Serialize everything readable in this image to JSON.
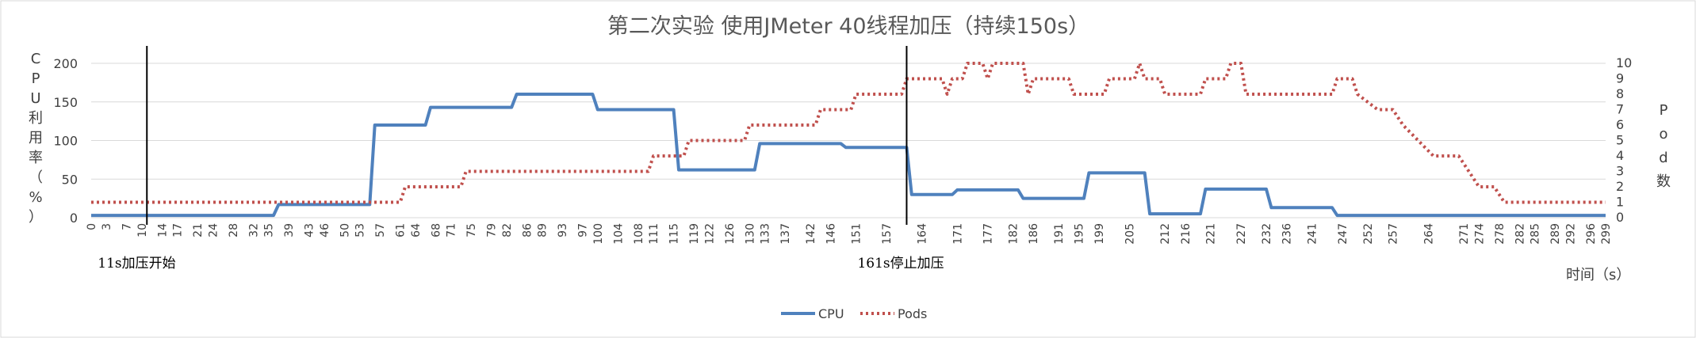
{
  "chart_data": {
    "type": "line",
    "title": "第二次实验 使用JMeter 40线程加压（持续150s）",
    "xlabel": "时间（s）",
    "ylabel_left_chars": [
      "C",
      "P",
      "U",
      "利",
      "用",
      "率",
      "（",
      "%",
      "）"
    ],
    "ylabel_right_chars": [
      "P",
      "o",
      "d",
      "数"
    ],
    "x_ticks": [
      0,
      3,
      7,
      10,
      14,
      17,
      21,
      24,
      28,
      32,
      35,
      39,
      43,
      46,
      50,
      53,
      57,
      61,
      64,
      68,
      71,
      75,
      79,
      82,
      86,
      89,
      93,
      97,
      100,
      104,
      108,
      111,
      115,
      119,
      122,
      126,
      130,
      133,
      137,
      142,
      146,
      151,
      157,
      164,
      171,
      177,
      182,
      186,
      191,
      195,
      199,
      205,
      212,
      216,
      221,
      227,
      232,
      236,
      241,
      247,
      252,
      257,
      264,
      271,
      274,
      278,
      282,
      285,
      289,
      292,
      296,
      299
    ],
    "y_left": {
      "min": 0,
      "max": 200,
      "ticks": [
        0,
        50,
        100,
        150,
        200
      ]
    },
    "y_right": {
      "min": 0,
      "max": 10,
      "ticks": [
        0,
        1,
        2,
        3,
        4,
        5,
        6,
        7,
        8,
        9,
        10
      ]
    },
    "series": [
      {
        "name": "CPU",
        "axis": "left",
        "color": "#4f81bd",
        "style": "solid",
        "points": [
          [
            0,
            3
          ],
          [
            36,
            3
          ],
          [
            37,
            17
          ],
          [
            55,
            17
          ],
          [
            56,
            120
          ],
          [
            66,
            120
          ],
          [
            67,
            143
          ],
          [
            83,
            143
          ],
          [
            84,
            160
          ],
          [
            99,
            160
          ],
          [
            100,
            140
          ],
          [
            115,
            140
          ],
          [
            116,
            62
          ],
          [
            131,
            62
          ],
          [
            132,
            96
          ],
          [
            148,
            96
          ],
          [
            149,
            91
          ],
          [
            161,
            91
          ],
          [
            162,
            30
          ],
          [
            170,
            30
          ],
          [
            171,
            36
          ],
          [
            183,
            36
          ],
          [
            184,
            25
          ],
          [
            196,
            25
          ],
          [
            197,
            58
          ],
          [
            208,
            58
          ],
          [
            209,
            5
          ],
          [
            219,
            5
          ],
          [
            220,
            37
          ],
          [
            232,
            37
          ],
          [
            233,
            13
          ],
          [
            245,
            13
          ],
          [
            246,
            3
          ],
          [
            299,
            3
          ]
        ]
      },
      {
        "name": "Pods",
        "axis": "right",
        "color": "#c0504d",
        "style": "dotted",
        "points": [
          [
            0,
            1
          ],
          [
            61,
            1
          ],
          [
            62,
            2
          ],
          [
            73,
            2
          ],
          [
            74,
            3
          ],
          [
            110,
            3
          ],
          [
            111,
            4
          ],
          [
            117,
            4
          ],
          [
            118,
            5
          ],
          [
            129,
            5
          ],
          [
            130,
            6
          ],
          [
            143,
            6
          ],
          [
            144,
            7
          ],
          [
            150,
            7
          ],
          [
            151,
            8
          ],
          [
            160,
            8
          ],
          [
            161,
            9
          ],
          [
            168,
            9
          ],
          [
            169,
            8
          ],
          [
            170,
            9
          ],
          [
            172,
            9
          ],
          [
            173,
            10
          ],
          [
            176,
            10
          ],
          [
            177,
            9
          ],
          [
            178,
            10
          ],
          [
            184,
            10
          ],
          [
            185,
            8
          ],
          [
            186,
            9
          ],
          [
            193,
            9
          ],
          [
            194,
            8
          ],
          [
            200,
            8
          ],
          [
            201,
            9
          ],
          [
            206,
            9
          ],
          [
            207,
            10
          ],
          [
            208,
            9
          ],
          [
            211,
            9
          ],
          [
            212,
            8
          ],
          [
            219,
            8
          ],
          [
            220,
            9
          ],
          [
            224,
            9
          ],
          [
            225,
            10
          ],
          [
            227,
            10
          ],
          [
            228,
            8
          ],
          [
            245,
            8
          ],
          [
            246,
            9
          ],
          [
            249,
            9
          ],
          [
            250,
            8
          ],
          [
            254,
            7
          ],
          [
            257,
            7
          ],
          [
            259,
            6
          ],
          [
            262,
            5
          ],
          [
            265,
            4
          ],
          [
            270,
            4
          ],
          [
            272,
            3
          ],
          [
            274,
            2
          ],
          [
            277,
            2
          ],
          [
            279,
            1
          ],
          [
            299,
            1
          ]
        ]
      }
    ],
    "annotations": [
      {
        "x": 11,
        "text": "11s加压开始"
      },
      {
        "x": 161,
        "text": "161s停止加压"
      }
    ],
    "legend_position": "bottom",
    "grid": "horizontal"
  }
}
